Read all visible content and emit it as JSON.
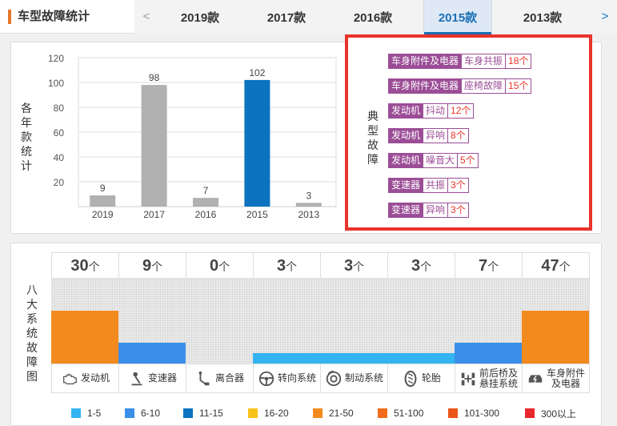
{
  "header": {
    "title": "车型故障统计",
    "prev_arrow": "<",
    "next_arrow": ">",
    "tabs": [
      {
        "label": "2019款",
        "active": false
      },
      {
        "label": "2017款",
        "active": false
      },
      {
        "label": "2016款",
        "active": false
      },
      {
        "label": "2015款",
        "active": true
      },
      {
        "label": "2013款",
        "active": false
      }
    ]
  },
  "chart_data": {
    "type": "bar",
    "ylabel": "各年款统计",
    "categories": [
      "2019",
      "2017",
      "2016",
      "2015",
      "2013"
    ],
    "values": [
      9,
      98,
      7,
      102,
      3
    ],
    "highlight_index": 3,
    "ylim": [
      0,
      120
    ],
    "yticks": [
      20,
      40,
      60,
      80,
      100,
      120
    ],
    "grid": true,
    "colors": {
      "default": "#b1b1b1",
      "highlight": "#0b73bf"
    }
  },
  "faults": {
    "label": "典型故障",
    "items": [
      {
        "category": "车身附件及电器",
        "symptom": "车身共振",
        "count": "18个"
      },
      {
        "category": "车身附件及电器",
        "symptom": "座椅故障",
        "count": "15个"
      },
      {
        "category": "发动机",
        "symptom": "抖动",
        "count": "12个"
      },
      {
        "category": "发动机",
        "symptom": "异响",
        "count": "8个"
      },
      {
        "category": "发动机",
        "symptom": "噪音大",
        "count": "5个"
      },
      {
        "category": "变速器",
        "symptom": "共振",
        "count": "3个"
      },
      {
        "category": "变速器",
        "symptom": "异响",
        "count": "3个"
      }
    ]
  },
  "systems": {
    "label": "八大系统故障图",
    "unit": "个",
    "items": [
      {
        "name_lines": [
          "发动机"
        ],
        "count": "30",
        "level": 0.62,
        "color": "#f28a1e",
        "icon": "engine-icon"
      },
      {
        "name_lines": [
          "变速器"
        ],
        "count": "9",
        "level": 0.25,
        "color": "#3b8fe8",
        "icon": "gear-shift-icon"
      },
      {
        "name_lines": [
          "离合器"
        ],
        "count": "0",
        "level": 0,
        "color": "#3b8fe8",
        "icon": "clutch-icon"
      },
      {
        "name_lines": [
          "转向系统"
        ],
        "count": "3",
        "level": 0.12,
        "color": "#33b4f0",
        "icon": "steering-wheel-icon"
      },
      {
        "name_lines": [
          "制动系统"
        ],
        "count": "3",
        "level": 0.12,
        "color": "#33b4f0",
        "icon": "brake-icon"
      },
      {
        "name_lines": [
          "轮胎"
        ],
        "count": "3",
        "level": 0.12,
        "color": "#33b4f0",
        "icon": "tire-icon"
      },
      {
        "name_lines": [
          "前后桥及",
          "悬挂系统"
        ],
        "count": "7",
        "level": 0.25,
        "color": "#3b8fe8",
        "icon": "axle-suspension-icon"
      },
      {
        "name_lines": [
          "车身附件",
          "及电器"
        ],
        "count": "47",
        "level": 0.62,
        "color": "#f28a1e",
        "icon": "car-electric-icon"
      }
    ]
  },
  "legend": [
    {
      "label": "1-5",
      "color": "#33b4f0"
    },
    {
      "label": "6-10",
      "color": "#3b8fe8"
    },
    {
      "label": "11-15",
      "color": "#0b73bf"
    },
    {
      "label": "16-20",
      "color": "#f8c31a"
    },
    {
      "label": "21-50",
      "color": "#f28a1e"
    },
    {
      "label": "51-100",
      "color": "#f26b1a"
    },
    {
      "label": "101-300",
      "color": "#ec5519"
    },
    {
      "label": "300以上",
      "color": "#e8262b"
    }
  ]
}
